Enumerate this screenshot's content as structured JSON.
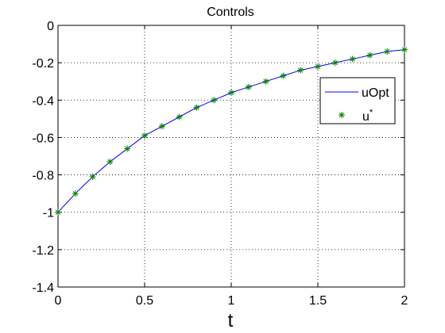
{
  "chart_data": {
    "type": "line",
    "title": "Controls",
    "xlabel": "t",
    "ylabel": "",
    "xlim": [
      0,
      2
    ],
    "ylim": [
      -1.4,
      0
    ],
    "grid": true,
    "x_ticks": [
      "0",
      "0.5",
      "1",
      "1.5",
      "2"
    ],
    "y_ticks": [
      "0",
      "-0.2",
      "-0.4",
      "-0.6",
      "-0.8",
      "-1",
      "-1.2",
      "-1.4"
    ],
    "legend_position": "top-right",
    "series": [
      {
        "name": "uOpt",
        "style": "line",
        "color": "#0000ff",
        "x": [
          0,
          0.1,
          0.2,
          0.3,
          0.4,
          0.5,
          0.6,
          0.7,
          0.8,
          0.9,
          1.0,
          1.1,
          1.2,
          1.3,
          1.4,
          1.5,
          1.6,
          1.7,
          1.8,
          1.9,
          2.0
        ],
        "y": [
          -1.0,
          -0.9,
          -0.81,
          -0.73,
          -0.66,
          -0.59,
          -0.54,
          -0.49,
          -0.44,
          -0.4,
          -0.36,
          -0.33,
          -0.3,
          -0.27,
          -0.24,
          -0.22,
          -0.2,
          -0.18,
          -0.16,
          -0.14,
          -0.13
        ]
      },
      {
        "name": "u*",
        "legend_label_main": "u",
        "legend_label_sup": "*",
        "style": "markers",
        "marker": "asterisk",
        "color": "#008000",
        "x": [
          0,
          0.1,
          0.2,
          0.3,
          0.4,
          0.5,
          0.6,
          0.7,
          0.8,
          0.9,
          1.0,
          1.1,
          1.2,
          1.3,
          1.4,
          1.5,
          1.6,
          1.7,
          1.8,
          1.9,
          2.0
        ],
        "y": [
          -1.0,
          -0.9,
          -0.81,
          -0.73,
          -0.66,
          -0.59,
          -0.54,
          -0.49,
          -0.44,
          -0.4,
          -0.36,
          -0.33,
          -0.3,
          -0.27,
          -0.24,
          -0.22,
          -0.2,
          -0.18,
          -0.16,
          -0.14,
          -0.13
        ]
      }
    ]
  }
}
